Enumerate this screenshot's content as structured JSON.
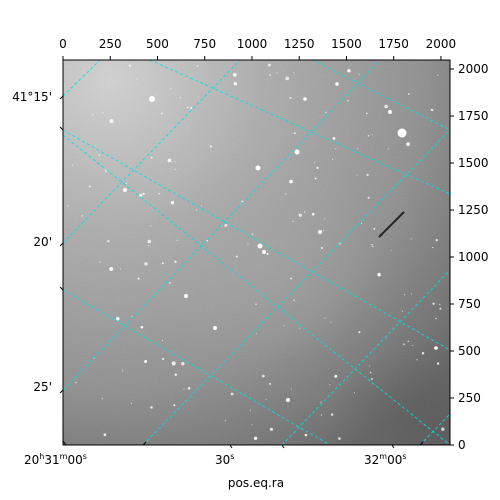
{
  "chart_data": {
    "type": "image",
    "title": "",
    "xlabel": "pos.eq.ra",
    "ylabel": "",
    "pixel_axes": {
      "xlim": [
        0,
        2048
      ],
      "ylim": [
        0,
        2048
      ],
      "top_ticks": [
        0,
        250,
        500,
        750,
        1000,
        1250,
        1500,
        1750,
        2000
      ],
      "right_ticks": [
        0,
        250,
        500,
        750,
        1000,
        1250,
        1500,
        1750,
        2000
      ]
    },
    "world_axes": {
      "ra_ticks": [
        {
          "label_h": "20",
          "label_m": "31",
          "label_s": "00",
          "full": true,
          "ra_offset_s": 0
        },
        {
          "label_h": "",
          "label_m": "",
          "label_s": "30",
          "full": false,
          "ra_offset_s": 30
        },
        {
          "label_h": "",
          "label_m": "32",
          "label_s": "00",
          "full": true,
          "ra_offset_s": 60
        }
      ],
      "dec_ticks": [
        {
          "label": "41°15'",
          "dec_arcmin": 15
        },
        {
          "label": "20'",
          "dec_arcmin": 20
        },
        {
          "label": "25'",
          "dec_arcmin": 25
        }
      ]
    },
    "grid": true,
    "grid_color": "#00e0e0",
    "colormap": "gray"
  }
}
